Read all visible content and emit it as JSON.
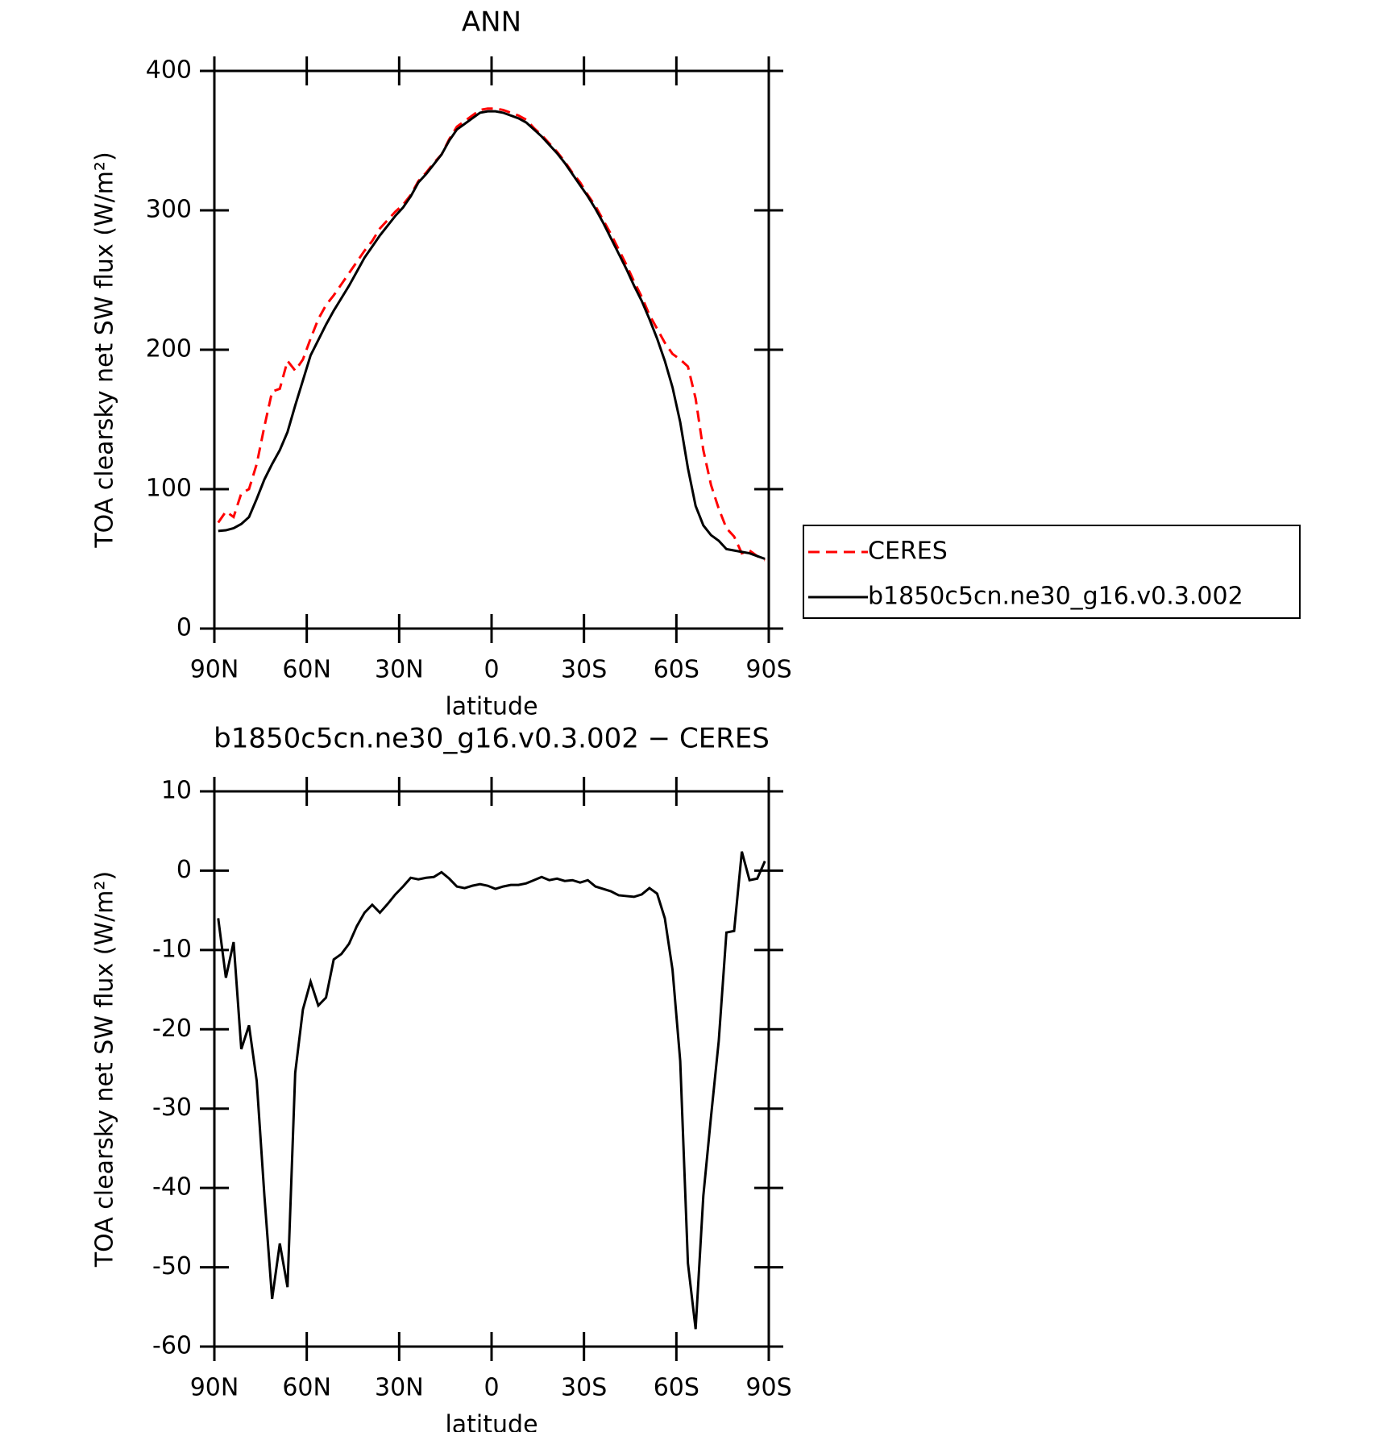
{
  "chart_data": [
    {
      "type": "line",
      "title": "ANN",
      "xlabel": "latitude",
      "ylabel": "TOA clearsky net SW flux (W/m²)",
      "x": [
        88.75,
        86.25,
        83.75,
        81.25,
        78.75,
        76.25,
        73.75,
        71.25,
        68.75,
        66.25,
        63.75,
        61.25,
        58.75,
        56.25,
        53.75,
        51.25,
        48.75,
        46.25,
        43.75,
        41.25,
        38.75,
        36.25,
        33.75,
        31.25,
        28.75,
        26.25,
        23.75,
        21.25,
        18.75,
        16.25,
        13.75,
        11.25,
        8.75,
        6.25,
        3.75,
        1.25,
        -1.25,
        -3.75,
        -6.25,
        -8.75,
        -11.25,
        -13.75,
        -16.25,
        -18.75,
        -21.25,
        -23.75,
        -26.25,
        -28.75,
        -31.25,
        -33.75,
        -36.25,
        -38.75,
        -41.25,
        -43.75,
        -46.25,
        -48.75,
        -51.25,
        -53.75,
        -56.25,
        -58.75,
        -61.25,
        -63.75,
        -66.25,
        -68.75,
        -71.25,
        -73.75,
        -76.25,
        -78.75,
        -81.25,
        -83.75,
        -86.25,
        -88.75
      ],
      "series": [
        {
          "name": "CERES",
          "color": "#ff0000",
          "linestyle": "dashed",
          "values": [
            76,
            84,
            80,
            97,
            100,
            118,
            145,
            170,
            172,
            192,
            185,
            193,
            208,
            222,
            232,
            239,
            247,
            255,
            263,
            271,
            278,
            287,
            293,
            299,
            304,
            311,
            321,
            327,
            334,
            340,
            351,
            360,
            364,
            368,
            372,
            373,
            373,
            372,
            370,
            368,
            365,
            359,
            354,
            348,
            342,
            335,
            327,
            320,
            311,
            303,
            293,
            283,
            272,
            261,
            249,
            238,
            225,
            215,
            205,
            197,
            193,
            188,
            165,
            128,
            103,
            86,
            72,
            66,
            54,
            56,
            52,
            49
          ]
        },
        {
          "name": "b1850c5cn.ne30_g16.v0.3.002",
          "color": "#000000",
          "linestyle": "solid",
          "values": [
            70,
            70.5,
            72,
            75,
            80,
            93,
            107,
            118,
            128,
            141,
            160,
            178,
            196,
            207,
            218,
            228,
            237,
            246,
            256,
            266,
            274,
            282,
            289,
            296,
            302,
            310,
            320,
            326,
            333,
            340,
            350,
            358,
            362,
            366,
            370,
            371,
            371,
            370,
            368,
            366,
            363,
            358,
            353,
            347,
            341,
            334,
            326,
            318,
            310,
            301,
            291,
            280,
            269,
            258,
            246,
            235,
            222,
            208,
            192,
            173,
            148,
            115,
            88,
            74,
            67,
            63,
            57,
            56,
            55,
            54,
            52,
            50
          ]
        }
      ],
      "xlim": [
        90,
        -90
      ],
      "xticks": [
        {
          "value": 90,
          "label": "90N"
        },
        {
          "value": 60,
          "label": "60N"
        },
        {
          "value": 30,
          "label": "30N"
        },
        0,
        {
          "value": -30,
          "label": "30S"
        },
        {
          "value": -60,
          "label": "60S"
        },
        {
          "value": -90,
          "label": "90S"
        }
      ],
      "ylim": [
        0,
        400
      ],
      "yticks": [
        0,
        100,
        200,
        300,
        400
      ],
      "legend": "right"
    },
    {
      "type": "line",
      "title": "b1850c5cn.ne30_g16.v0.3.002 − CERES",
      "xlabel": "latitude",
      "ylabel": "TOA clearsky net SW flux (W/m²)",
      "x": [
        88.75,
        86.25,
        83.75,
        81.25,
        78.75,
        76.25,
        73.75,
        71.25,
        68.75,
        66.25,
        63.75,
        61.25,
        58.75,
        56.25,
        53.75,
        51.25,
        48.75,
        46.25,
        43.75,
        41.25,
        38.75,
        36.25,
        33.75,
        31.25,
        28.75,
        26.25,
        23.75,
        21.25,
        18.75,
        16.25,
        13.75,
        11.25,
        8.75,
        6.25,
        3.75,
        1.25,
        -1.25,
        -3.75,
        -6.25,
        -8.75,
        -11.25,
        -13.75,
        -16.25,
        -18.75,
        -21.25,
        -23.75,
        -26.25,
        -28.75,
        -31.25,
        -33.75,
        -36.25,
        -38.75,
        -41.25,
        -43.75,
        -46.25,
        -48.75,
        -51.25,
        -53.75,
        -56.25,
        -58.75,
        -61.25,
        -63.75,
        -66.25,
        -68.75,
        -71.25,
        -73.75,
        -76.25,
        -78.75,
        -81.25,
        -83.75,
        -86.25,
        -88.75
      ],
      "series": [
        {
          "color": "#000000",
          "linestyle": "solid",
          "values": [
            -6,
            -13.5,
            -9,
            -22.5,
            -19.5,
            -26.5,
            -41,
            -54,
            -47,
            -52.5,
            -25.5,
            -17.5,
            -14,
            -17,
            -16,
            -11.2,
            -10.5,
            -9.2,
            -7,
            -5.3,
            -4.3,
            -5.3,
            -4.2,
            -3,
            -2,
            -0.9,
            -1.1,
            -0.9,
            -0.8,
            -0.2,
            -1,
            -2,
            -2.2,
            -1.9,
            -1.7,
            -1.9,
            -2.3,
            -2,
            -1.8,
            -1.8,
            -1.6,
            -1.2,
            -0.8,
            -1.2,
            -1,
            -1.3,
            -1.2,
            -1.5,
            -1.2,
            -2,
            -2.3,
            -2.6,
            -3.1,
            -3.2,
            -3.3,
            -3,
            -2.2,
            -2.9,
            -6,
            -12.5,
            -24,
            -49.5,
            -57.8,
            -41,
            -31,
            -21.5,
            -7.8,
            -7.6,
            2.4,
            -1.2,
            -1,
            1.2
          ]
        }
      ],
      "xlim": [
        90,
        -90
      ],
      "xticks": [
        {
          "value": 90,
          "label": "90N"
        },
        {
          "value": 60,
          "label": "60N"
        },
        {
          "value": 30,
          "label": "30N"
        },
        0,
        {
          "value": -30,
          "label": "30S"
        },
        {
          "value": -60,
          "label": "60S"
        },
        {
          "value": -90,
          "label": "90S"
        }
      ],
      "ylim": [
        -60,
        10
      ],
      "yticks": [
        -60,
        -50,
        -40,
        -30,
        -20,
        -10,
        0,
        10
      ]
    }
  ]
}
